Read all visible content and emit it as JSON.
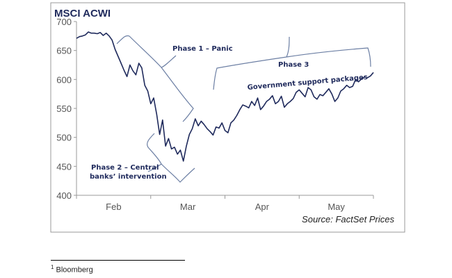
{
  "chart_data": {
    "type": "line",
    "title": "MSCI ACWI",
    "source": "Source: FactSet Prices",
    "ylim": [
      400,
      700
    ],
    "y_ticks": [
      "700",
      "650",
      "600",
      "550",
      "500",
      "450",
      "400"
    ],
    "x_ticks": [
      "Feb",
      "Mar",
      "Apr",
      "May"
    ],
    "grid": false,
    "colors": {
      "line": "#1f2a5c",
      "brace": "#6b7ea3",
      "frame": "#999999"
    },
    "series": [
      {
        "values": [
          671,
          674,
          675,
          677,
          682,
          680,
          680,
          679,
          681,
          676,
          680,
          675,
          668,
          652,
          640,
          628,
          616,
          605,
          625,
          615,
          608,
          628,
          620,
          590,
          580,
          558,
          568,
          540,
          505,
          530,
          485,
          498,
          480,
          483,
          471,
          478,
          459,
          485,
          505,
          515,
          532,
          520,
          528,
          522,
          515,
          510,
          504,
          518,
          516,
          525,
          512,
          508,
          525,
          530,
          538,
          548,
          556,
          554,
          551,
          562,
          555,
          568,
          548,
          554,
          562,
          566,
          572,
          558,
          562,
          571,
          552,
          558,
          562,
          567,
          578,
          582,
          576,
          570,
          586,
          582,
          570,
          566,
          574,
          572,
          578,
          584,
          575,
          562,
          568,
          580,
          584,
          590,
          586,
          588,
          600,
          596,
          601,
          604,
          603,
          606,
          612
        ]
      }
    ],
    "annotations": [
      {
        "label": "Phase 1 – Panic"
      },
      {
        "label": "Phase 2 – Central",
        "label2": "banks’ intervention"
      },
      {
        "label": "Phase 3",
        "label2": "Government support packages"
      }
    ]
  },
  "footnote": {
    "marker": "1",
    "text": "Bloomberg"
  }
}
